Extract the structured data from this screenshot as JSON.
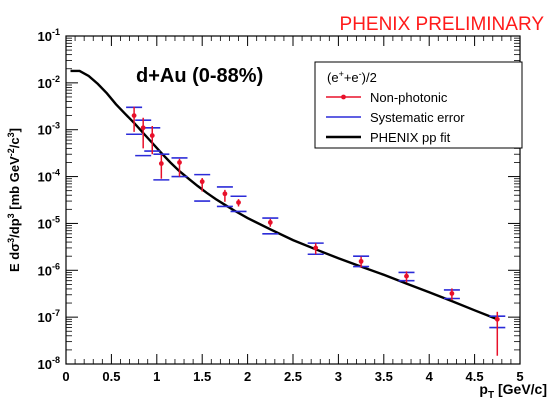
{
  "chart_data": {
    "type": "scatter",
    "banner": "PHENIX PRELIMINARY",
    "title": "d+Au (0-88%)",
    "xlabel": {
      "main": "p",
      "sub": "T",
      "rest": " [GeV/c]"
    },
    "ylabel": {
      "pre": "E d",
      "sigma": "σ",
      "mid": "/dp",
      "post": " [mb GeV",
      "unitsup": "-2",
      "slash": "/c",
      "csup": "3",
      "close": "]"
    },
    "xlim": [
      0,
      5
    ],
    "ylim": [
      1e-08,
      0.1
    ],
    "yscale": "log",
    "x_ticks": [
      "0",
      "0.5",
      "1",
      "1.5",
      "2",
      "2.5",
      "3",
      "3.5",
      "4",
      "4.5",
      "5"
    ],
    "y_tick_exponents": [
      "-8",
      "-7",
      "-6",
      "-5",
      "-4",
      "-3",
      "-2",
      "-1"
    ],
    "y_tick_base": "10",
    "legend": {
      "header": {
        "pre": "(e",
        "plus": "+",
        "mid": "+e",
        "minus": "-",
        "post": ")/2"
      },
      "entries": [
        "Non-photonic",
        "Systematic error",
        "PHENIX pp fit"
      ],
      "position": "top-right"
    },
    "colors": {
      "data": "#e8102a",
      "syst": "#2b2bd8",
      "fit": "#000000",
      "banner": "#ff1a1a"
    },
    "series": [
      {
        "name": "Non-photonic",
        "x": [
          0.75,
          0.85,
          0.95,
          1.05,
          1.25,
          1.5,
          1.75,
          1.9,
          2.25,
          2.75,
          3.25,
          3.75,
          4.25,
          4.75
        ],
        "y": [
          0.002,
          0.0011,
          0.00075,
          0.00019,
          0.0002,
          7.8e-05,
          4.3e-05,
          2.8e-05,
          1.05e-05,
          3e-06,
          1.55e-06,
          7.5e-07,
          3.2e-07,
          9e-08
        ],
        "y_err_low": [
          0.0011,
          0.0007,
          0.00045,
          0.0001,
          0.0001,
          3e-05,
          1.4e-05,
          5e-06,
          2e-06,
          8e-07,
          4e-07,
          2e-07,
          9e-08,
          7.5e-08
        ],
        "y_err_high": [
          0.0011,
          0.0007,
          0.00045,
          0.0001,
          4e-05,
          1.5e-05,
          9e-06,
          5e-06,
          2e-06,
          8e-07,
          4e-07,
          2e-07,
          9e-08,
          4e-08
        ]
      },
      {
        "name": "Systematic error",
        "x": [
          0.75,
          0.85,
          0.95,
          1.05,
          1.25,
          1.5,
          1.75,
          1.9,
          2.25,
          2.75,
          3.25,
          3.75,
          4.25,
          4.75
        ],
        "y_low": [
          0.0008,
          0.00028,
          0.00035,
          8.5e-05,
          0.0001,
          3e-05,
          2.3e-05,
          1.8e-05,
          6e-06,
          2.2e-06,
          1.2e-06,
          6e-07,
          2.5e-07,
          6e-08
        ],
        "y_high": [
          0.003,
          0.0016,
          0.0011,
          0.0003,
          0.00025,
          0.00011,
          6e-05,
          3.8e-05,
          1.3e-05,
          3.8e-06,
          2e-06,
          9e-07,
          3.8e-07,
          1.05e-07
        ]
      },
      {
        "name": "PHENIX pp fit",
        "x": [
          0.05,
          0.15,
          0.25,
          0.35,
          0.45,
          0.55,
          0.65,
          0.75,
          0.85,
          0.95,
          1.05,
          1.15,
          1.25,
          1.35,
          1.45,
          1.55,
          1.65,
          1.75,
          1.85,
          2.0,
          2.25,
          2.5,
          2.75,
          3.0,
          3.25,
          3.5,
          3.75,
          4.0,
          4.25,
          4.5,
          4.75
        ],
        "y": [
          0.018,
          0.018,
          0.014,
          0.0095,
          0.006,
          0.0035,
          0.0022,
          0.0014,
          0.00085,
          0.00052,
          0.00032,
          0.0002,
          0.00013,
          9e-05,
          6.3e-05,
          4.5e-05,
          3.3e-05,
          2.5e-05,
          1.9e-05,
          1.3e-05,
          7.5e-06,
          4.4e-06,
          2.8e-06,
          1.8e-06,
          1.2e-06,
          8e-07,
          5.2e-07,
          3.4e-07,
          2.2e-07,
          1.4e-07,
          9e-08
        ]
      }
    ]
  }
}
